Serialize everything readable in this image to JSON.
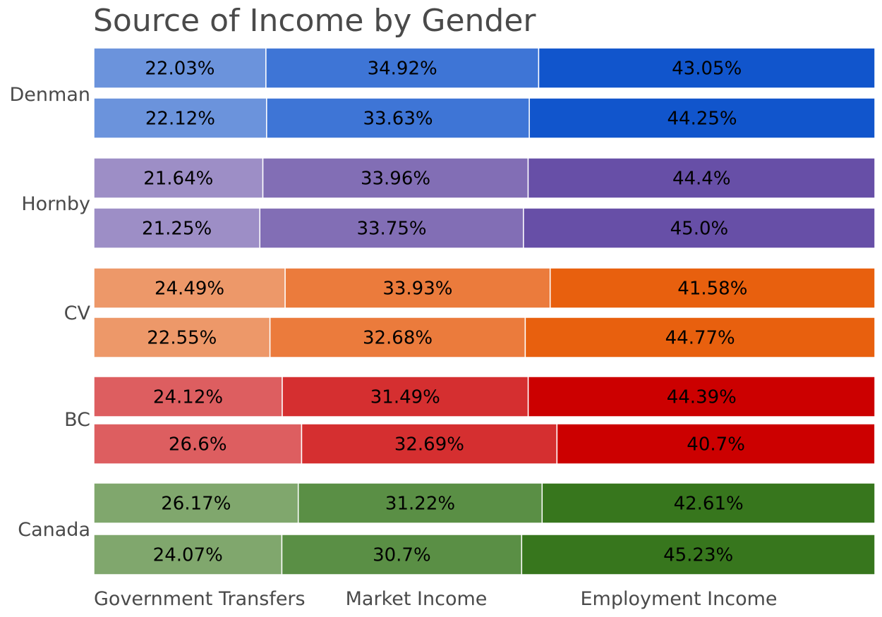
{
  "chart_data": {
    "type": "bar",
    "orientation": "horizontal",
    "stacked": true,
    "normalized": true,
    "title": "Source of Income by Gender",
    "categories": [
      "Government Transfers",
      "Market Income",
      "Employment Income"
    ],
    "groups": [
      {
        "label": "Denman",
        "colors": [
          "#6b93dc",
          "#3e75d6",
          "#1155cc"
        ],
        "bars": [
          [
            22.03,
            34.92,
            43.05
          ],
          [
            22.12,
            33.63,
            44.25
          ]
        ],
        "labels": [
          [
            "22.03%",
            "34.92%",
            "43.05%"
          ],
          [
            "22.12%",
            "33.63%",
            "44.25%"
          ]
        ]
      },
      {
        "label": "Hornby",
        "colors": [
          "#9d8ec6",
          "#826eb5",
          "#674fa7"
        ],
        "bars": [
          [
            21.64,
            33.96,
            44.4
          ],
          [
            21.25,
            33.75,
            45.0
          ]
        ],
        "labels": [
          [
            "21.64%",
            "33.96%",
            "44.4%"
          ],
          [
            "21.25%",
            "33.75%",
            "45.0%"
          ]
        ]
      },
      {
        "label": "CV",
        "colors": [
          "#ed9869",
          "#eb7b3c",
          "#e8600e"
        ],
        "bars": [
          [
            24.49,
            33.93,
            41.58
          ],
          [
            22.55,
            32.68,
            44.77
          ]
        ],
        "labels": [
          [
            "24.49%",
            "33.93%",
            "41.58%"
          ],
          [
            "22.55%",
            "32.68%",
            "44.77%"
          ]
        ]
      },
      {
        "label": "BC",
        "colors": [
          "#dd5e60",
          "#d52f30",
          "#cc0000"
        ],
        "bars": [
          [
            24.12,
            31.49,
            44.39
          ],
          [
            26.6,
            32.69,
            40.7
          ]
        ],
        "labels": [
          [
            "24.12%",
            "31.49%",
            "44.39%"
          ],
          [
            "26.6%",
            "32.69%",
            "40.7%"
          ]
        ]
      },
      {
        "label": "Canada",
        "colors": [
          "#80a76d",
          "#5a8f45",
          "#37761d"
        ],
        "bars": [
          [
            26.17,
            31.22,
            42.61
          ],
          [
            24.07,
            30.7,
            45.23
          ]
        ],
        "labels": [
          [
            "26.17%",
            "31.22%",
            "42.61%"
          ],
          [
            "24.07%",
            "30.7%",
            "45.23%"
          ]
        ]
      }
    ],
    "xlim": [
      0,
      100
    ],
    "grid": false,
    "legend": "none"
  }
}
